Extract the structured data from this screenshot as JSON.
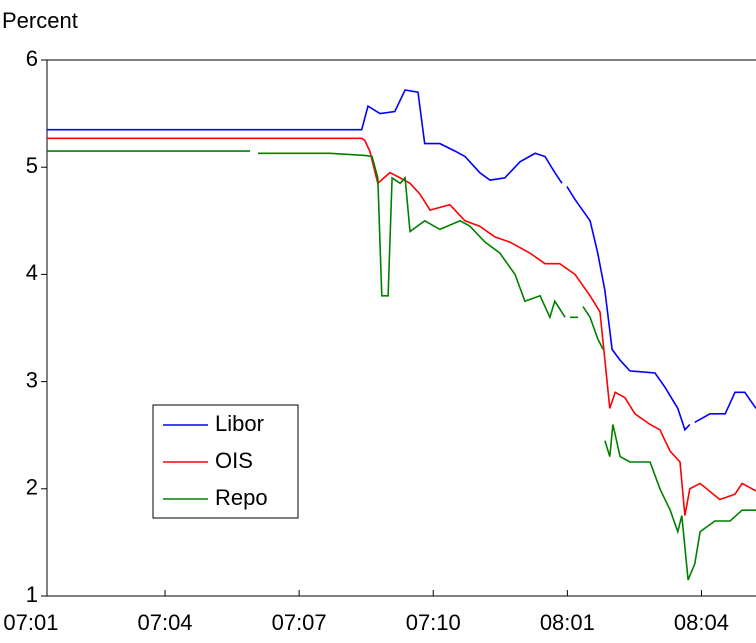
{
  "chart_data": {
    "type": "line",
    "y_label": "Percent",
    "xlim": [
      0.36,
      16.22
    ],
    "ylim": [
      1,
      6
    ],
    "yticks": [
      1,
      2,
      3,
      4,
      5,
      6
    ],
    "xticks": [
      {
        "value": 0,
        "label": "07:01"
      },
      {
        "value": 3,
        "label": "07:04"
      },
      {
        "value": 6,
        "label": "07:07"
      },
      {
        "value": 9,
        "label": "07:10"
      },
      {
        "value": 12,
        "label": "08:01"
      },
      {
        "value": 15,
        "label": "08:04"
      }
    ],
    "legend": "lower-left",
    "series": [
      {
        "name": "Libor",
        "color": "#0000ff",
        "x": [
          0.36,
          7.4,
          7.54,
          7.81,
          8.14,
          8.37,
          8.66,
          8.81,
          9.15,
          9.49,
          9.71,
          10.04,
          10.27,
          10.6,
          10.94,
          11.28,
          11.5,
          11.72,
          11.88,
          11.94,
          11.99,
          12.17,
          12.51,
          12.68,
          12.84,
          13.0,
          13.18,
          13.4,
          13.96,
          14.18,
          14.47,
          14.63,
          14.74,
          14.8,
          14.85,
          15.19,
          15.53,
          15.75,
          15.97,
          16.22
        ],
        "values": [
          5.35,
          5.35,
          5.57,
          5.5,
          5.52,
          5.72,
          5.7,
          5.22,
          5.22,
          5.15,
          5.1,
          4.95,
          4.88,
          4.9,
          5.05,
          5.13,
          5.1,
          4.95,
          4.85,
          null,
          4.82,
          4.7,
          4.5,
          4.2,
          3.85,
          3.3,
          3.2,
          3.1,
          3.08,
          2.95,
          2.75,
          2.55,
          2.6,
          null,
          2.62,
          2.7,
          2.7,
          2.9,
          2.9,
          2.75
        ]
      },
      {
        "name": "OIS",
        "color": "#ff0000",
        "x": [
          0.36,
          7.4,
          7.47,
          7.58,
          7.76,
          8.03,
          8.26,
          8.48,
          8.7,
          8.93,
          9.37,
          9.71,
          10.04,
          10.38,
          10.72,
          11.16,
          11.5,
          11.83,
          12.17,
          12.51,
          12.73,
          12.84,
          12.95,
          13.07,
          13.29,
          13.51,
          13.85,
          14.07,
          14.3,
          14.52,
          14.63,
          14.74,
          14.97,
          15.41,
          15.75,
          15.91,
          16.22
        ],
        "values": [
          5.27,
          5.27,
          5.25,
          5.15,
          4.85,
          4.95,
          4.9,
          4.85,
          4.75,
          4.6,
          4.65,
          4.5,
          4.45,
          4.35,
          4.3,
          4.2,
          4.1,
          4.1,
          4.0,
          3.8,
          3.65,
          3.2,
          2.75,
          2.9,
          2.85,
          2.7,
          2.6,
          2.55,
          2.35,
          2.25,
          1.75,
          2.0,
          2.05,
          1.9,
          1.95,
          2.05,
          1.98
        ]
      },
      {
        "name": "Repo",
        "color": "#008000",
        "x": [
          0.36,
          4.9,
          4.99,
          5.08,
          6.69,
          7.47,
          7.63,
          7.76,
          7.85,
          7.99,
          8.08,
          8.26,
          8.37,
          8.48,
          8.81,
          9.15,
          9.6,
          9.82,
          10.16,
          10.49,
          10.83,
          11.05,
          11.39,
          11.61,
          11.72,
          11.95,
          12.0,
          12.06,
          12.24,
          12.3,
          12.35,
          12.51,
          12.68,
          12.8,
          12.82,
          12.84,
          12.95,
          13.02,
          13.18,
          13.4,
          13.85,
          14.07,
          14.3,
          14.47,
          14.56,
          14.7,
          14.85,
          14.97,
          15.3,
          15.64,
          15.91,
          16.22
        ],
        "values": [
          5.15,
          5.15,
          null,
          5.13,
          5.13,
          5.11,
          5.1,
          4.9,
          3.8,
          3.8,
          4.9,
          4.85,
          4.9,
          4.4,
          4.5,
          4.42,
          4.5,
          4.45,
          4.3,
          4.2,
          4.0,
          3.75,
          3.8,
          3.6,
          3.75,
          3.6,
          null,
          3.6,
          3.6,
          null,
          3.7,
          3.6,
          3.4,
          3.3,
          null,
          2.45,
          2.3,
          2.6,
          2.3,
          2.25,
          2.25,
          2.0,
          1.8,
          1.6,
          1.75,
          1.15,
          1.3,
          1.6,
          1.7,
          1.7,
          1.8,
          1.8
        ]
      }
    ]
  }
}
